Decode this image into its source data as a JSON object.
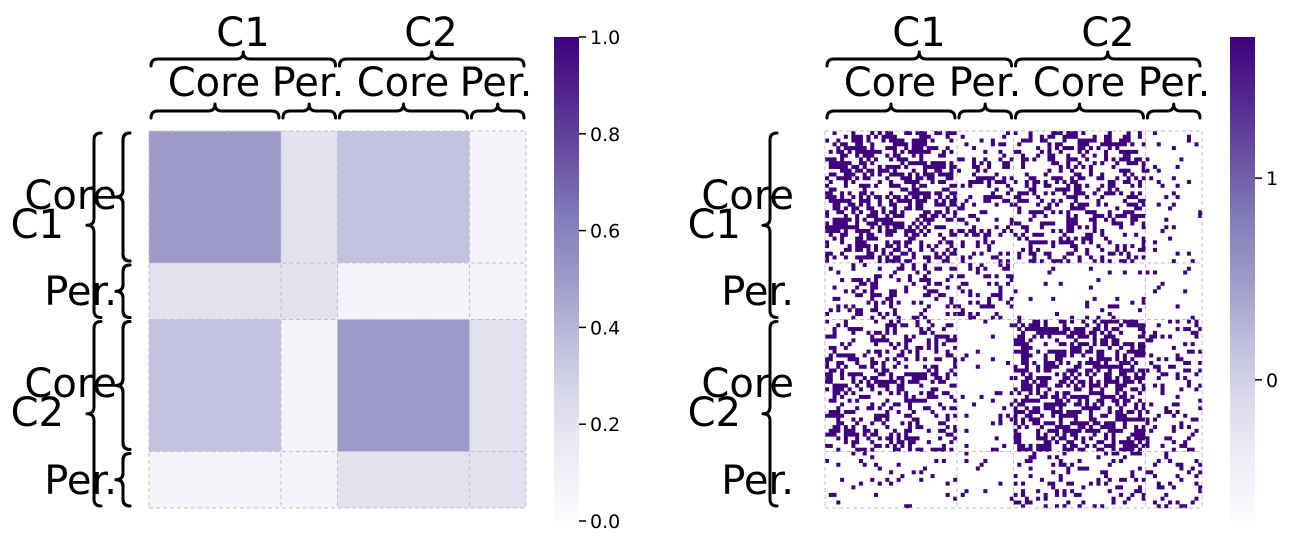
{
  "colors": {
    "colormap": "Purples",
    "low": "#fcfbfd",
    "high": "#3f007d"
  },
  "chart_data": [
    {
      "type": "heatmap",
      "title": "",
      "xlabel": "",
      "ylabel": "",
      "block_sizes": [
        0.35,
        0.15,
        0.35,
        0.15
      ],
      "block_labels": [
        "Core",
        "Per.",
        "Core",
        "Per."
      ],
      "group_labels": [
        "C1",
        "C2"
      ],
      "values": [
        [
          0.5,
          0.2,
          0.35,
          0.07
        ],
        [
          0.2,
          0.2,
          0.07,
          0.07
        ],
        [
          0.35,
          0.07,
          0.5,
          0.2
        ],
        [
          0.07,
          0.07,
          0.2,
          0.2
        ]
      ],
      "colorbar": {
        "range": [
          0,
          1
        ],
        "ticks": [
          0,
          0.2,
          0.4,
          0.6,
          0.8,
          1.0
        ],
        "tick_labels": [
          "0.0",
          "0.2",
          "0.4",
          "0.6",
          "0.8",
          "1.0"
        ]
      }
    },
    {
      "type": "heatmap",
      "title": "",
      "xlabel": "",
      "ylabel": "",
      "n_nodes": 100,
      "block_sizes": [
        0.35,
        0.15,
        0.35,
        0.15
      ],
      "block_labels": [
        "Core",
        "Per.",
        "Core",
        "Per."
      ],
      "group_labels": [
        "C1",
        "C2"
      ],
      "block_edge_probability": [
        [
          0.5,
          0.2,
          0.35,
          0.07
        ],
        [
          0.2,
          0.2,
          0.07,
          0.07
        ],
        [
          0.35,
          0.07,
          0.5,
          0.2
        ],
        [
          0.07,
          0.07,
          0.2,
          0.2
        ]
      ],
      "values_binary": [
        0,
        1
      ],
      "colorbar": {
        "range": [
          -0.7,
          1.7
        ],
        "ticks": [
          0,
          1
        ],
        "tick_labels": [
          "0",
          "1"
        ]
      }
    }
  ]
}
